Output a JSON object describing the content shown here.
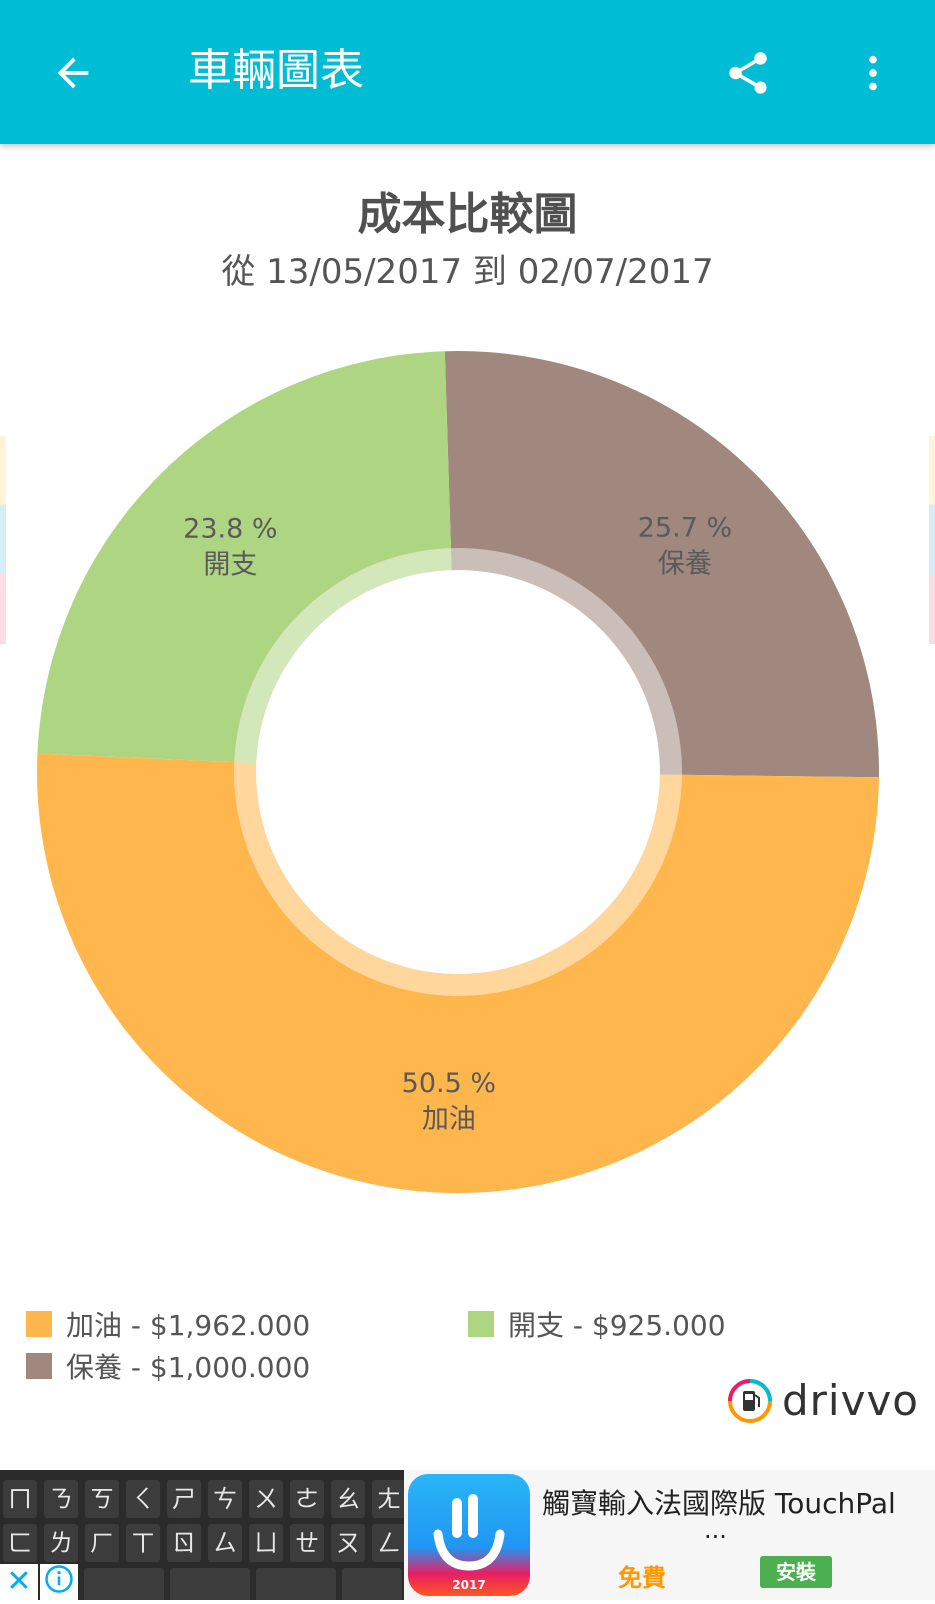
{
  "app_bar": {
    "title": "車輛圖表",
    "back_icon": "arrow-back-icon",
    "share_icon": "share-icon",
    "more_icon": "more-vert-icon",
    "background": "#00bcd4"
  },
  "chart_header": {
    "title": "成本比較圖",
    "subtitle": "從 13/05/2017 到 02/07/2017"
  },
  "chart_data": {
    "type": "pie",
    "title": "成本比較圖",
    "subtitle": "從 13/05/2017 到 02/07/2017",
    "slices": [
      {
        "label": "保養",
        "percent": 25.7,
        "percent_label": "25.7 %",
        "value": 1000.0,
        "color": "#a1887f"
      },
      {
        "label": "加油",
        "percent": 50.5,
        "percent_label": "50.5 %",
        "value": 1962.0,
        "color": "#ffb74d"
      },
      {
        "label": "開支",
        "percent": 23.8,
        "percent_label": "23.8 %",
        "value": 925.0,
        "color": "#aed581"
      }
    ]
  },
  "legend": [
    {
      "text": "加油 - $1,962.000",
      "color": "#ffb74d"
    },
    {
      "text": "開支 - $925.000",
      "color": "#aed581"
    },
    {
      "text": "保養 - $1,000.000",
      "color": "#a1887f"
    }
  ],
  "brand": {
    "name": "drivvo",
    "icon": "fuel-pump-icon"
  },
  "ad": {
    "title": "觸寶輸入法國際版 TouchPal",
    "ellipsis": "...",
    "free_label": "免費",
    "install_label": "安裝",
    "logo_year": "2017",
    "close_icon": "close-icon",
    "info_icon": "info-icon",
    "keyboard_rows": [
      [
        "ㄇ",
        "ㄋ",
        "ㄎ",
        "ㄑ",
        "ㄕ",
        "ㄘ",
        "ㄨ",
        "ㄜ",
        "ㄠ",
        "ㄤ"
      ],
      [
        "ㄈ",
        "ㄌ",
        "ㄏ",
        "ㄒ",
        "ㄖ",
        "ㄙ",
        "ㄩ",
        "ㄝ",
        "ㄡ",
        "ㄥ"
      ]
    ]
  }
}
